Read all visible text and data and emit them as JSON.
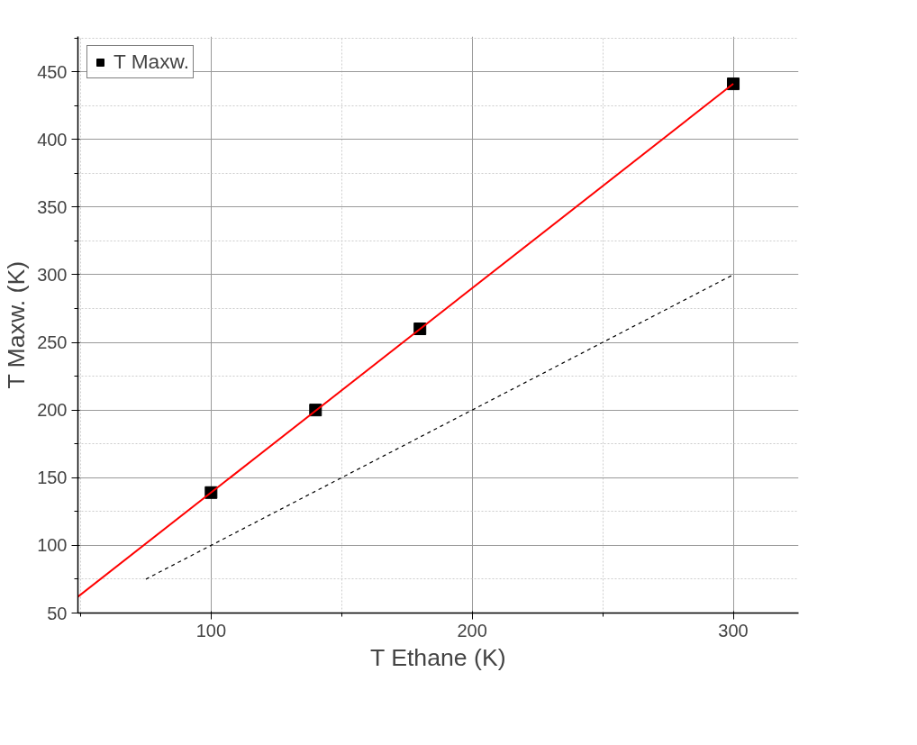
{
  "chart_data": {
    "type": "scatter",
    "xlabel": "T Ethane (K)",
    "ylabel": "T Maxw. (K)",
    "xlim": [
      49,
      325
    ],
    "ylim": [
      50,
      476
    ],
    "xticks": [
      {
        "value": 50,
        "label": null
      },
      100,
      {
        "value": 150,
        "label": null
      },
      200,
      {
        "value": 250,
        "label": null
      },
      300
    ],
    "yticks": [
      50,
      {
        "value": 75,
        "label": null
      },
      100,
      {
        "value": 125,
        "label": null
      },
      150,
      {
        "value": 175,
        "label": null
      },
      200,
      {
        "value": 225,
        "label": null
      },
      250,
      {
        "value": 275,
        "label": null
      },
      300,
      {
        "value": 325,
        "label": null
      },
      350,
      {
        "value": 375,
        "label": null
      },
      400,
      {
        "value": 425,
        "label": null
      },
      450,
      {
        "value": 475,
        "label": null
      }
    ],
    "grid": true,
    "legend": "top left",
    "series": [
      {
        "name": "T Maxw.",
        "marker": "square",
        "color": "#000000",
        "x": [
          100,
          140,
          180,
          300
        ],
        "values": [
          139,
          200,
          260,
          441
        ]
      },
      {
        "type": "line",
        "color": "#ff0000",
        "line_style": "solid",
        "x": [
          49,
          300
        ],
        "values": [
          62,
          441
        ]
      },
      {
        "type": "line",
        "color": "#000000",
        "line_style": "dashed",
        "x": [
          75,
          300
        ],
        "values": [
          75,
          300
        ]
      }
    ]
  }
}
